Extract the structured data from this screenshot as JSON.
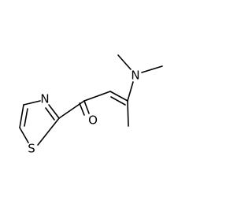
{
  "atoms": {
    "ring_sulfur": "S",
    "ring_nitrogen": "N",
    "carbonyl_oxygen": "O",
    "amine_nitrogen": "N"
  }
}
